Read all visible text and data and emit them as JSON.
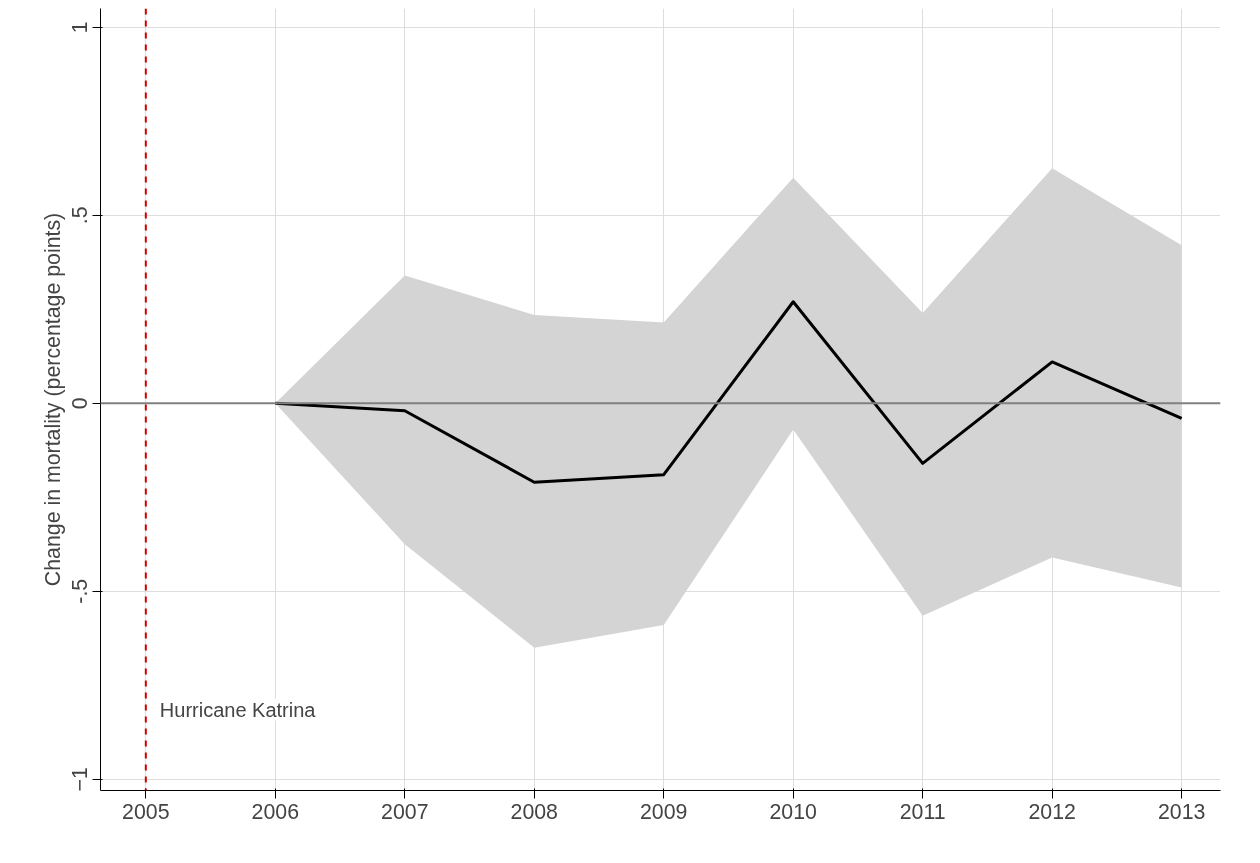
{
  "chart_data": {
    "type": "line",
    "ylabel": "Change in mortality (percentage points)",
    "x": [
      2006,
      2007,
      2008,
      2009,
      2010,
      2011,
      2012,
      2013
    ],
    "series": [
      {
        "color": "#000000",
        "values": [
          0,
          -0.02,
          -0.21,
          -0.19,
          0.27,
          -0.16,
          0.11,
          -0.04
        ],
        "lower": [
          0,
          -0.375,
          -0.65,
          -0.59,
          -0.07,
          -0.565,
          -0.41,
          -0.49
        ],
        "upper": [
          0,
          0.34,
          0.235,
          0.215,
          0.6,
          0.24,
          0.625,
          0.42
        ]
      }
    ],
    "xlim": [
      2004.65,
      2013.3
    ],
    "ylim": [
      -1.03,
      1.05
    ],
    "xticks": [
      2005,
      2006,
      2007,
      2008,
      2009,
      2010,
      2011,
      2012,
      2013
    ],
    "yticks": [
      -1,
      {
        "value": -0.5,
        "label": "-.5"
      },
      0,
      {
        "value": 0.5,
        "label": ".5"
      },
      1
    ],
    "ref_lines": [
      {
        "axis": "x",
        "value": 2005,
        "label": "Hurricane Katrina",
        "color": "#cc0000",
        "line_style": "dashed"
      },
      {
        "axis": "y",
        "value": 0,
        "label": null,
        "color": "#808080",
        "line_style": "solid"
      }
    ],
    "grid": true,
    "marker": "none",
    "line_style": "solid"
  }
}
